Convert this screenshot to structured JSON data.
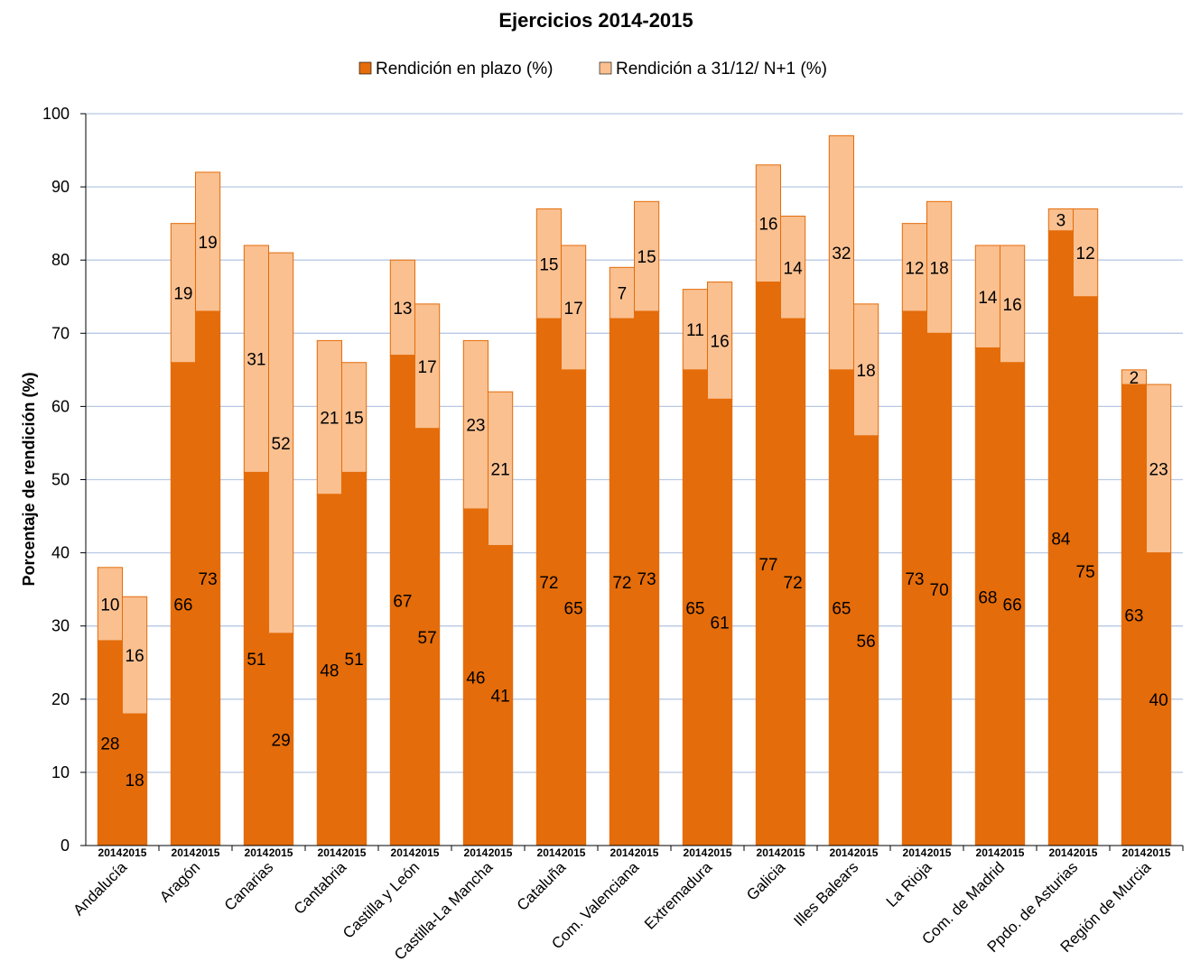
{
  "chart_data": {
    "type": "bar",
    "stacked": true,
    "title": "Ejercicios 2014-2015",
    "ylabel": "Porcentaje de rendición (%)",
    "ylim": [
      0,
      100
    ],
    "yticks": [
      0,
      10,
      20,
      30,
      40,
      50,
      60,
      70,
      80,
      90,
      100
    ],
    "grid": true,
    "legend_position": "top",
    "colors": {
      "en_plazo": "#e46c0a",
      "a_31_12": "#fac090",
      "border": "#e46c0a",
      "grid": "#b9c9e4"
    },
    "series": [
      {
        "key": "en_plazo",
        "name": "Rendición en plazo (%)"
      },
      {
        "key": "a_31_12",
        "name": "Rendición a 31/12/ N+1 (%)"
      }
    ],
    "categories": [
      {
        "name": "Andalucía",
        "bars": [
          {
            "year": "2014",
            "en_plazo": 28,
            "a_31_12": 10
          },
          {
            "year": "2015",
            "en_plazo": 18,
            "a_31_12": 16
          }
        ]
      },
      {
        "name": "Aragón",
        "bars": [
          {
            "year": "2014",
            "en_plazo": 66,
            "a_31_12": 19
          },
          {
            "year": "2015",
            "en_plazo": 73,
            "a_31_12": 19
          }
        ]
      },
      {
        "name": "Canarias",
        "bars": [
          {
            "year": "2014",
            "en_plazo": 51,
            "a_31_12": 31
          },
          {
            "year": "2015",
            "en_plazo": 29,
            "a_31_12": 52
          }
        ]
      },
      {
        "name": "Cantabria",
        "bars": [
          {
            "year": "2014",
            "en_plazo": 48,
            "a_31_12": 21
          },
          {
            "year": "2015",
            "en_plazo": 51,
            "a_31_12": 15
          }
        ]
      },
      {
        "name": "Castilla y León",
        "bars": [
          {
            "year": "2014",
            "en_plazo": 67,
            "a_31_12": 13
          },
          {
            "year": "2015",
            "en_plazo": 57,
            "a_31_12": 17
          }
        ]
      },
      {
        "name": "Castilla-La Mancha",
        "bars": [
          {
            "year": "2014",
            "en_plazo": 46,
            "a_31_12": 23
          },
          {
            "year": "2015",
            "en_plazo": 41,
            "a_31_12": 21
          }
        ]
      },
      {
        "name": "Cataluña",
        "bars": [
          {
            "year": "2014",
            "en_plazo": 72,
            "a_31_12": 15
          },
          {
            "year": "2015",
            "en_plazo": 65,
            "a_31_12": 17
          }
        ]
      },
      {
        "name": "Com. Valenciana",
        "bars": [
          {
            "year": "2014",
            "en_plazo": 72,
            "a_31_12": 7
          },
          {
            "year": "2015",
            "en_plazo": 73,
            "a_31_12": 15
          }
        ]
      },
      {
        "name": "Extremadura",
        "bars": [
          {
            "year": "2014",
            "en_plazo": 65,
            "a_31_12": 11
          },
          {
            "year": "2015",
            "en_plazo": 61,
            "a_31_12": 16
          }
        ]
      },
      {
        "name": "Galicia",
        "bars": [
          {
            "year": "2014",
            "en_plazo": 77,
            "a_31_12": 16
          },
          {
            "year": "2015",
            "en_plazo": 72,
            "a_31_12": 14
          }
        ]
      },
      {
        "name": "Illes Balears",
        "bars": [
          {
            "year": "2014",
            "en_plazo": 65,
            "a_31_12": 32
          },
          {
            "year": "2015",
            "en_plazo": 56,
            "a_31_12": 18
          }
        ]
      },
      {
        "name": "La Rioja",
        "bars": [
          {
            "year": "2014",
            "en_plazo": 73,
            "a_31_12": 12
          },
          {
            "year": "2015",
            "en_plazo": 70,
            "a_31_12": 18
          }
        ]
      },
      {
        "name": "Com. de Madrid",
        "bars": [
          {
            "year": "2014",
            "en_plazo": 68,
            "a_31_12": 14
          },
          {
            "year": "2015",
            "en_plazo": 66,
            "a_31_12": 16
          }
        ]
      },
      {
        "name": "Ppdo. de Asturias",
        "bars": [
          {
            "year": "2014",
            "en_plazo": 84,
            "a_31_12": 3
          },
          {
            "year": "2015",
            "en_plazo": 75,
            "a_31_12": 12
          }
        ]
      },
      {
        "name": "Región de Murcia",
        "bars": [
          {
            "year": "2014",
            "en_plazo": 63,
            "a_31_12": 2
          },
          {
            "year": "2015",
            "en_plazo": 40,
            "a_31_12": 23
          }
        ]
      }
    ]
  }
}
